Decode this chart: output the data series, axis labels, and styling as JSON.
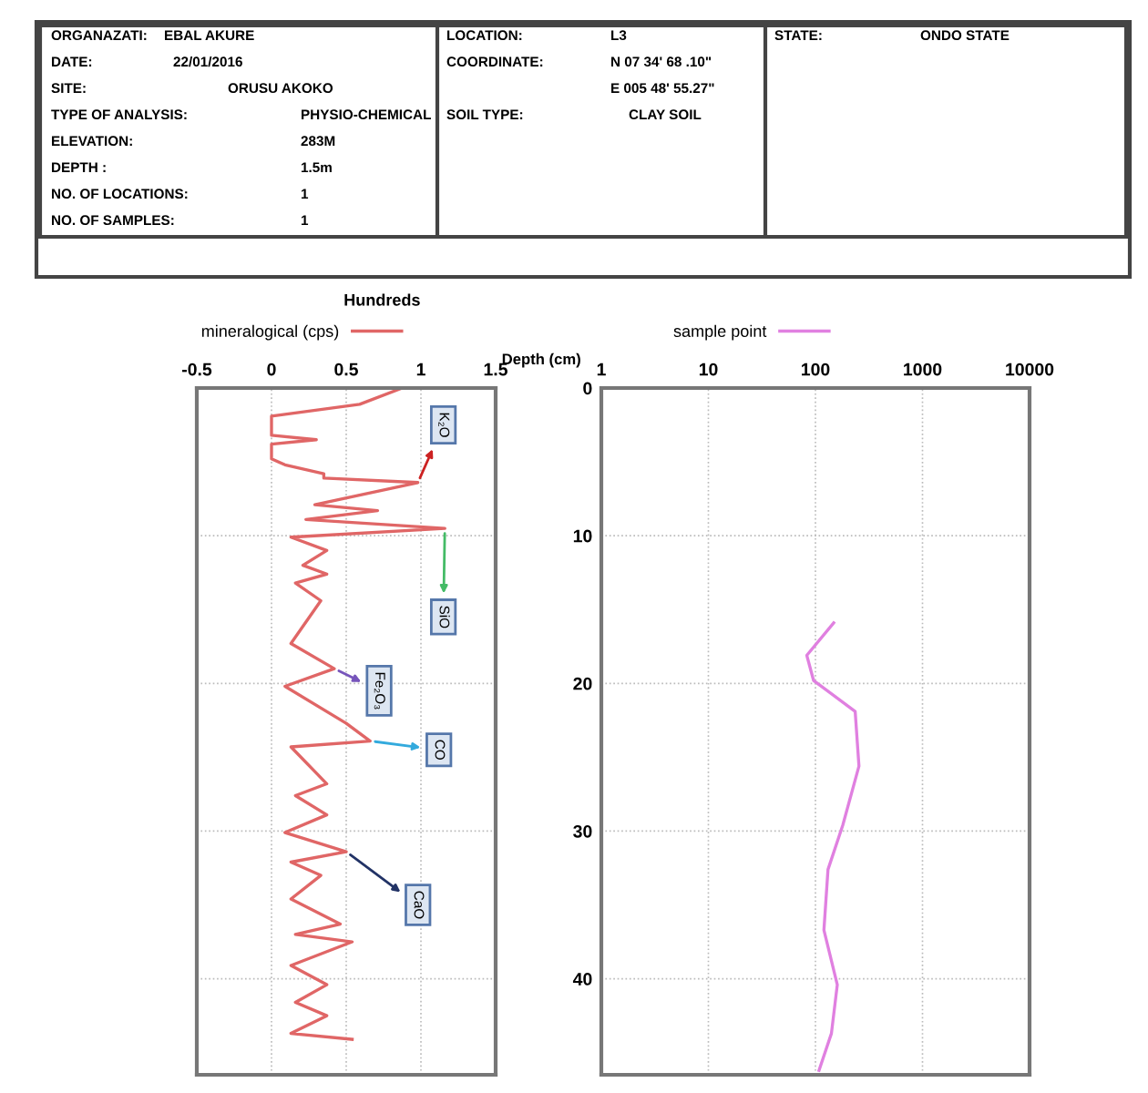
{
  "chart_data": [
    {
      "type": "other",
      "annotations": [
        "ORGANAZATI:",
        "EBAL AKURE",
        "DATE:",
        "22/01/2016",
        "SITE:",
        "ORUSU AKOKO",
        "TYPE OF ANALYSIS:",
        "PHYSIO-CHEMICAL",
        "ELEVATION:",
        "283M",
        "DEPTH :",
        "1.5m",
        "NO. OF LOCATIONS:",
        "1",
        "NO. OF SAMPLES:",
        "1",
        "LOCATION:",
        "L3",
        "COORDINATE:",
        "N 07 34' 68 .10\"",
        "E 005 48' 55.27\"",
        "SOIL TYPE:",
        "CLAY SOIL",
        "STATE:",
        "ONDO STATE"
      ]
    },
    {
      "type": "line",
      "xlabel": "Hundreds",
      "xlim": [
        -0.5,
        1.5
      ],
      "xticks": [
        -0.5,
        0,
        0.5,
        1,
        1.5
      ],
      "ylim": [
        46.5,
        0
      ],
      "tick_labels": "x",
      "grid": true,
      "legend": "top",
      "series": [
        {
          "name": "mineralogical (cps)",
          "color": "#e06666",
          "x": [
            0.875,
            0.59,
            0,
            0,
            0.3,
            0,
            0,
            0.09,
            0.35,
            0.35,
            0.98,
            0.29,
            0.71,
            0.23,
            1.16,
            0.13,
            0.37,
            0.21,
            0.37,
            0.16,
            0.33,
            0.13,
            0.42,
            0.09,
            0.5,
            0.66,
            0.13,
            0.37,
            0.16,
            0.37,
            0.09,
            0.5,
            0.13,
            0.33,
            0.13,
            0.46,
            0.16,
            0.54,
            0.13,
            0.37,
            0.16,
            0.37,
            0.13,
            0.54
          ],
          "values": [
            0,
            1.1,
            1.9,
            3.2,
            3.5,
            3.8,
            4.8,
            5.2,
            5.8,
            6.1,
            6.4,
            7.9,
            8.3,
            8.9,
            9.5,
            10.1,
            11,
            12,
            12.6,
            13.2,
            14.4,
            17.3,
            19,
            20.2,
            22.7,
            23.9,
            24.3,
            26.8,
            27.6,
            28.9,
            30.1,
            31.4,
            32.1,
            33,
            34.6,
            36.3,
            37,
            37.5,
            39.1,
            40.4,
            41.6,
            42.5,
            43.7,
            44.1
          ]
        }
      ],
      "annotations": [
        {
          "text": "K₂O",
          "x": 0.98,
          "y": 6.4
        },
        {
          "text": "SiO",
          "x": 1.16,
          "y": 9.5
        },
        {
          "text": "Fe₂O₃",
          "x": 0.42,
          "y": 19
        },
        {
          "text": "CO",
          "x": 0.66,
          "y": 23.9
        },
        {
          "text": "CaO",
          "x": 0.5,
          "y": 31.4
        }
      ]
    },
    {
      "type": "line",
      "log": "x",
      "ylabel": "Depth (cm)",
      "xlim": [
        1,
        10000
      ],
      "xticks": [
        1,
        10,
        100,
        1000,
        10000
      ],
      "ylim": [
        46.5,
        0
      ],
      "yticks": [
        0,
        10,
        20,
        30,
        40
      ],
      "grid": true,
      "legend": "top",
      "series": [
        {
          "name": "sample point",
          "color": "#e080e0",
          "x": [
            148,
            83,
            96,
            235,
            255,
            180,
            131,
            120,
            160,
            141,
            108
          ],
          "values": [
            15.9,
            18.1,
            19.8,
            21.9,
            25.6,
            29.6,
            32.6,
            36.7,
            40.4,
            43.7,
            46.2
          ]
        }
      ]
    }
  ]
}
